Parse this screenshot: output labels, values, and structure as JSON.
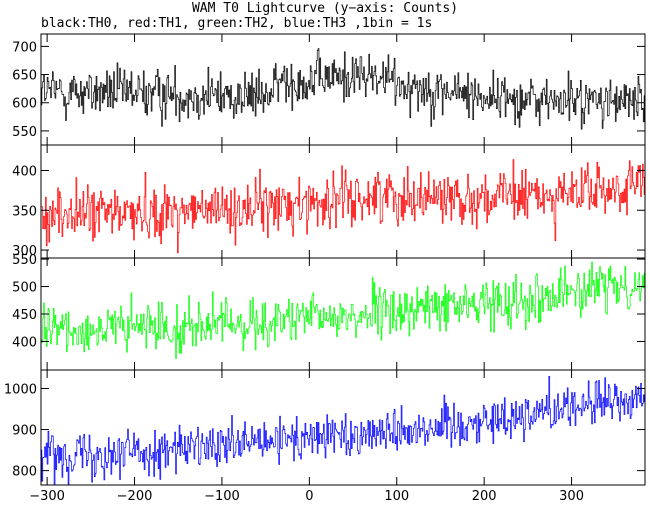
{
  "chart_data": {
    "type": "line",
    "title": "WAM T0 Lightcurve (y−axis: Counts)",
    "subtitle": "black:TH0, red:TH1, green:TH2, blue:TH3 ,1bin = 1s",
    "xlabel": "",
    "ylabel": "",
    "xlim": [
      -307,
      384
    ],
    "x_ticks": [
      -300,
      -200,
      -100,
      0,
      100,
      200,
      300
    ],
    "x_tick_labels": [
      "−300",
      "−200",
      "−100",
      "0",
      "100",
      "200",
      "300"
    ],
    "bin_seconds": 1,
    "panels": [
      {
        "name": "TH0",
        "color": "#000000",
        "ylim": [
          525,
          722
        ],
        "y_ticks": [
          550,
          600,
          650,
          700
        ],
        "trend": [
          [
            -300,
            620
          ],
          [
            -150,
            615
          ],
          [
            -50,
            610
          ],
          [
            -30,
            640
          ],
          [
            0,
            640
          ],
          [
            60,
            650
          ],
          [
            150,
            620
          ],
          [
            250,
            605
          ],
          [
            380,
            600
          ]
        ],
        "noise": 22
      },
      {
        "name": "TH1",
        "color": "#ff0000",
        "ylim": [
          290,
          432
        ],
        "y_ticks": [
          300,
          350,
          400
        ],
        "trend": [
          [
            -300,
            345
          ],
          [
            -100,
            350
          ],
          [
            0,
            360
          ],
          [
            100,
            370
          ],
          [
            200,
            365
          ],
          [
            300,
            370
          ],
          [
            380,
            380
          ]
        ],
        "noise": 17
      },
      {
        "name": "TH2",
        "color": "#00ff00",
        "ylim": [
          348,
          552
        ],
        "y_ticks": [
          400,
          450,
          500,
          550
        ],
        "trend": [
          [
            -300,
            420
          ],
          [
            -100,
            430
          ],
          [
            0,
            440
          ],
          [
            100,
            455
          ],
          [
            200,
            470
          ],
          [
            300,
            490
          ],
          [
            380,
            505
          ]
        ],
        "noise": 22
      },
      {
        "name": "TH3",
        "color": "#0000ff",
        "ylim": [
          765,
          1045
        ],
        "y_ticks": [
          800,
          900,
          1000
        ],
        "trend": [
          [
            -300,
            840
          ],
          [
            -100,
            855
          ],
          [
            0,
            880
          ],
          [
            100,
            900
          ],
          [
            200,
            920
          ],
          [
            300,
            960
          ],
          [
            380,
            970
          ]
        ],
        "noise": 28
      }
    ]
  }
}
